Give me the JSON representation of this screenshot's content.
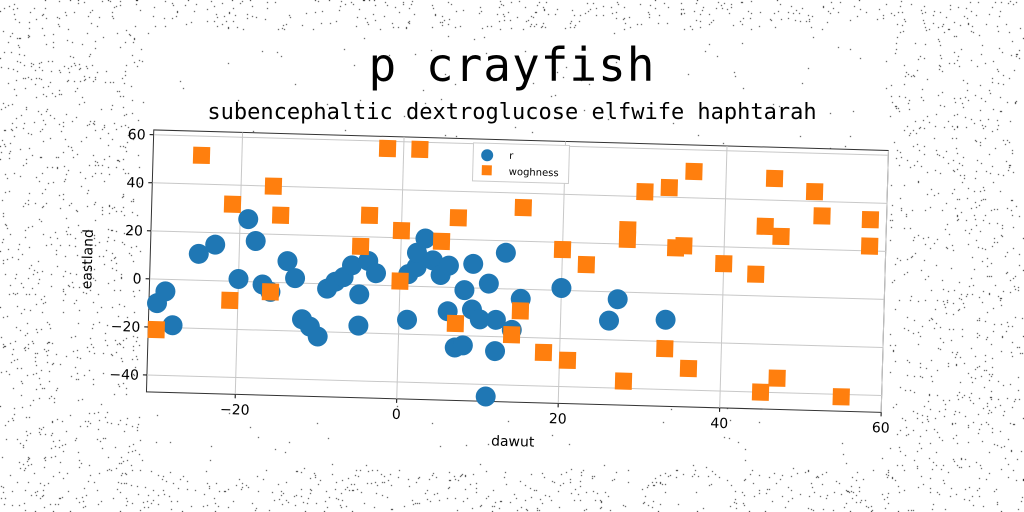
{
  "chart_data": {
    "type": "scatter",
    "title": "p crayfish",
    "subtitle": "subencephaltic dextroglucose elfwife haphtarah",
    "xlabel": "dawut",
    "ylabel": "eastland",
    "xlim": [
      -31,
      60
    ],
    "ylim": [
      -47,
      62
    ],
    "xticks": [
      -20,
      0,
      20,
      40,
      60
    ],
    "yticks": [
      -40,
      -20,
      0,
      20,
      40,
      60
    ],
    "grid": true,
    "legend_position": "upper-center",
    "series": [
      {
        "name": "r",
        "marker": "circle",
        "color": "#1f77b4",
        "points": [
          [
            -30,
            -10
          ],
          [
            -29,
            -5
          ],
          [
            -28,
            -19
          ],
          [
            -25,
            11
          ],
          [
            -23,
            15
          ],
          [
            -20,
            1
          ],
          [
            -19,
            26
          ],
          [
            -18,
            17
          ],
          [
            -17,
            -1
          ],
          [
            -16,
            -4
          ],
          [
            -14,
            9
          ],
          [
            -13,
            2
          ],
          [
            -12,
            -15
          ],
          [
            -11,
            -18
          ],
          [
            -10,
            -22
          ],
          [
            -9,
            -2
          ],
          [
            -8,
            1
          ],
          [
            -7,
            3
          ],
          [
            -6,
            8
          ],
          [
            -5,
            -4
          ],
          [
            -4,
            10
          ],
          [
            -3,
            5
          ],
          [
            -5,
            -17
          ],
          [
            1,
            -14
          ],
          [
            1,
            5
          ],
          [
            2,
            8
          ],
          [
            2,
            14
          ],
          [
            3,
            20
          ],
          [
            4,
            11
          ],
          [
            5,
            5
          ],
          [
            6,
            9
          ],
          [
            6,
            -10
          ],
          [
            7,
            -25
          ],
          [
            8,
            -24
          ],
          [
            8,
            -1
          ],
          [
            9,
            -9
          ],
          [
            9,
            10
          ],
          [
            10,
            -13
          ],
          [
            11,
            2
          ],
          [
            11,
            -45
          ],
          [
            12,
            -26
          ],
          [
            12,
            -13
          ],
          [
            13,
            15
          ],
          [
            14,
            -17
          ],
          [
            15,
            -4
          ],
          [
            20,
            1
          ],
          [
            26,
            -12
          ],
          [
            27,
            -3
          ],
          [
            33,
            -11
          ]
        ]
      },
      {
        "name": "woghness",
        "marker": "square",
        "color": "#ff7f0e",
        "points": [
          [
            -30,
            -21
          ],
          [
            -25,
            52
          ],
          [
            -21,
            32
          ],
          [
            -21,
            -8
          ],
          [
            -16,
            40
          ],
          [
            -15,
            28
          ],
          [
            -16,
            -4
          ],
          [
            -5,
            16
          ],
          [
            -4,
            29
          ],
          [
            -2,
            57
          ],
          [
            0,
            23
          ],
          [
            0,
            2
          ],
          [
            2,
            57
          ],
          [
            5,
            19
          ],
          [
            7,
            29
          ],
          [
            7,
            -15
          ],
          [
            14,
            -19
          ],
          [
            15,
            34
          ],
          [
            15,
            -9
          ],
          [
            18,
            -26
          ],
          [
            20,
            17
          ],
          [
            21,
            -29
          ],
          [
            23,
            11
          ],
          [
            28,
            26
          ],
          [
            28,
            22
          ],
          [
            28,
            -37
          ],
          [
            30,
            42
          ],
          [
            33,
            44
          ],
          [
            33,
            -23
          ],
          [
            34,
            19
          ],
          [
            35,
            20
          ],
          [
            36,
            51
          ],
          [
            36,
            -31
          ],
          [
            40,
            13
          ],
          [
            44,
            9
          ],
          [
            45,
            29
          ],
          [
            45,
            -40
          ],
          [
            46,
            49
          ],
          [
            47,
            -34
          ],
          [
            47,
            25
          ],
          [
            51,
            44
          ],
          [
            52,
            34
          ],
          [
            55,
            -41
          ],
          [
            58,
            33
          ],
          [
            58,
            22
          ]
        ]
      }
    ]
  }
}
